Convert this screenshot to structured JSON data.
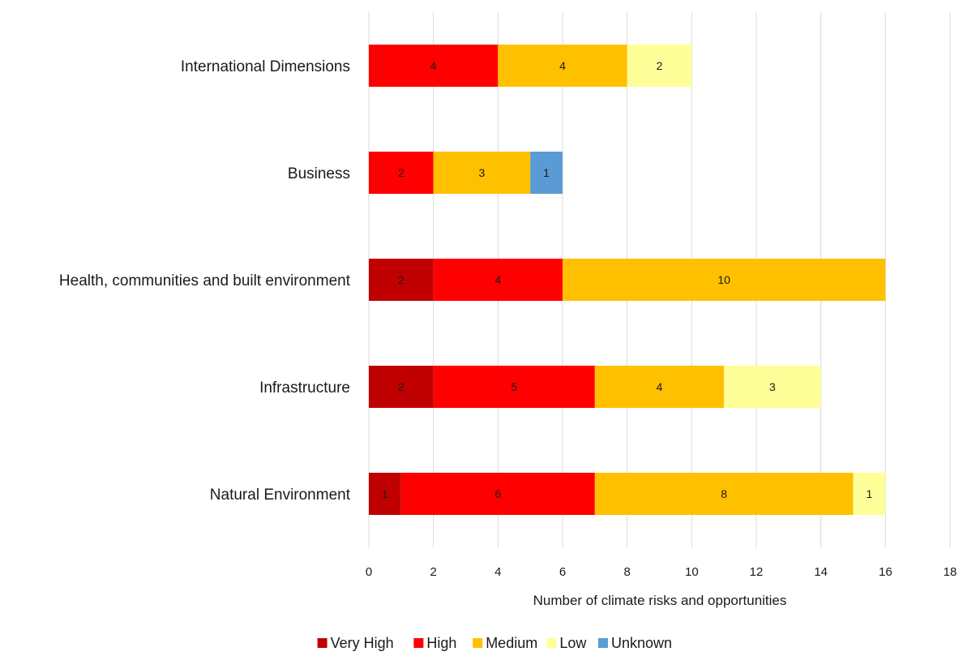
{
  "chart_data": {
    "type": "bar",
    "orientation": "horizontal",
    "stacked": true,
    "categories": [
      "International Dimensions",
      "Business",
      "Health, communities and built environment",
      "Infrastructure",
      "Natural Environment"
    ],
    "series": [
      {
        "name": "Very High",
        "color": "#c00000",
        "values": [
          0,
          0,
          2,
          2,
          1
        ]
      },
      {
        "name": "High",
        "color": "#ff0000",
        "values": [
          4,
          2,
          4,
          5,
          6
        ]
      },
      {
        "name": "Medium",
        "color": "#ffc000",
        "values": [
          4,
          3,
          10,
          4,
          8
        ]
      },
      {
        "name": "Low",
        "color": "#ffff99",
        "values": [
          2,
          0,
          0,
          3,
          1
        ]
      },
      {
        "name": "Unknown",
        "color": "#5b9bd5",
        "values": [
          0,
          1,
          0,
          0,
          0
        ]
      }
    ],
    "xlabel": "Number of climate risks and opportunities",
    "ylabel": "",
    "xlim": [
      0,
      18
    ],
    "xticks": [
      0,
      2,
      4,
      6,
      8,
      10,
      12,
      14,
      16,
      18
    ],
    "grid": true,
    "legend_position": "bottom"
  }
}
